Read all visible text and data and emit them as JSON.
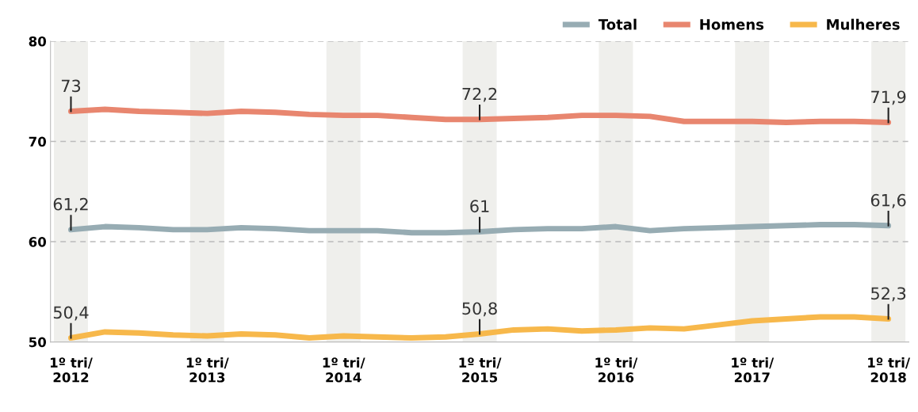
{
  "chart_data": {
    "type": "line",
    "categories": [
      "1º tri/\n2012",
      null,
      null,
      null,
      "1º tri/\n2013",
      null,
      null,
      null,
      "1º tri/\n2014",
      null,
      null,
      null,
      "1º tri/\n2015",
      null,
      null,
      null,
      "1º tri/\n2016",
      null,
      null,
      null,
      "1º tri/\n2017",
      null,
      null,
      null,
      "1º tri/\n2018"
    ],
    "series": [
      {
        "name": "Total",
        "color": "#97acb3",
        "values": [
          61.2,
          61.5,
          61.4,
          61.2,
          61.2,
          61.4,
          61.3,
          61.1,
          61.1,
          61.1,
          60.9,
          60.9,
          61.0,
          61.2,
          61.3,
          61.3,
          61.5,
          61.1,
          61.3,
          61.4,
          61.5,
          61.6,
          61.7,
          61.7,
          61.6
        ],
        "value_labels": [
          "61,2",
          null,
          null,
          null,
          null,
          null,
          null,
          null,
          null,
          null,
          null,
          null,
          "61",
          null,
          null,
          null,
          null,
          null,
          null,
          null,
          null,
          null,
          null,
          null,
          "61,6"
        ]
      },
      {
        "name": "Homens",
        "color": "#e8866f",
        "values": [
          73.0,
          73.2,
          73.0,
          72.9,
          72.8,
          73.0,
          72.9,
          72.7,
          72.6,
          72.6,
          72.4,
          72.2,
          72.2,
          72.3,
          72.4,
          72.6,
          72.6,
          72.5,
          72.0,
          72.0,
          72.0,
          71.9,
          72.0,
          72.0,
          71.9
        ],
        "value_labels": [
          "73",
          null,
          null,
          null,
          null,
          null,
          null,
          null,
          null,
          null,
          null,
          null,
          "72,2",
          null,
          null,
          null,
          null,
          null,
          null,
          null,
          null,
          null,
          null,
          null,
          "71,9"
        ]
      },
      {
        "name": "Mulheres",
        "color": "#f7b84b",
        "values": [
          50.4,
          51.0,
          50.9,
          50.7,
          50.6,
          50.8,
          50.7,
          50.4,
          50.6,
          50.5,
          50.4,
          50.5,
          50.8,
          51.2,
          51.3,
          51.1,
          51.2,
          51.4,
          51.3,
          51.7,
          52.1,
          52.3,
          52.5,
          52.5,
          52.3
        ],
        "value_labels": [
          "50,4",
          null,
          null,
          null,
          null,
          null,
          null,
          null,
          null,
          null,
          null,
          null,
          "50,8",
          null,
          null,
          null,
          null,
          null,
          null,
          null,
          null,
          null,
          null,
          null,
          "52,3"
        ]
      }
    ],
    "ylim": [
      50,
      80
    ],
    "yticks": [
      50,
      60,
      70,
      80
    ],
    "bands": [
      {
        "axis": "x",
        "from": "1º tri/\n2012",
        "to": "1º tri/\n2012",
        "color": "#efefec"
      },
      {
        "axis": "x",
        "from": "1º tri/\n2013",
        "to": "1º tri/\n2013",
        "color": "#efefec"
      },
      {
        "axis": "x",
        "from": "1º tri/\n2014",
        "to": "1º tri/\n2014",
        "color": "#efefec"
      },
      {
        "axis": "x",
        "from": "1º tri/\n2015",
        "to": "1º tri/\n2015",
        "color": "#efefec"
      },
      {
        "axis": "x",
        "from": "1º tri/\n2016",
        "to": "1º tri/\n2016",
        "color": "#efefec"
      },
      {
        "axis": "x",
        "from": "1º tri/\n2017",
        "to": "1º tri/\n2017",
        "color": "#efefec"
      },
      {
        "axis": "x",
        "from": "1º tri/\n2018",
        "to": "1º tri/\n2018",
        "color": "#efefec"
      }
    ],
    "grid": "y",
    "legend": "top right",
    "marker": "none",
    "line_style": "solid"
  }
}
